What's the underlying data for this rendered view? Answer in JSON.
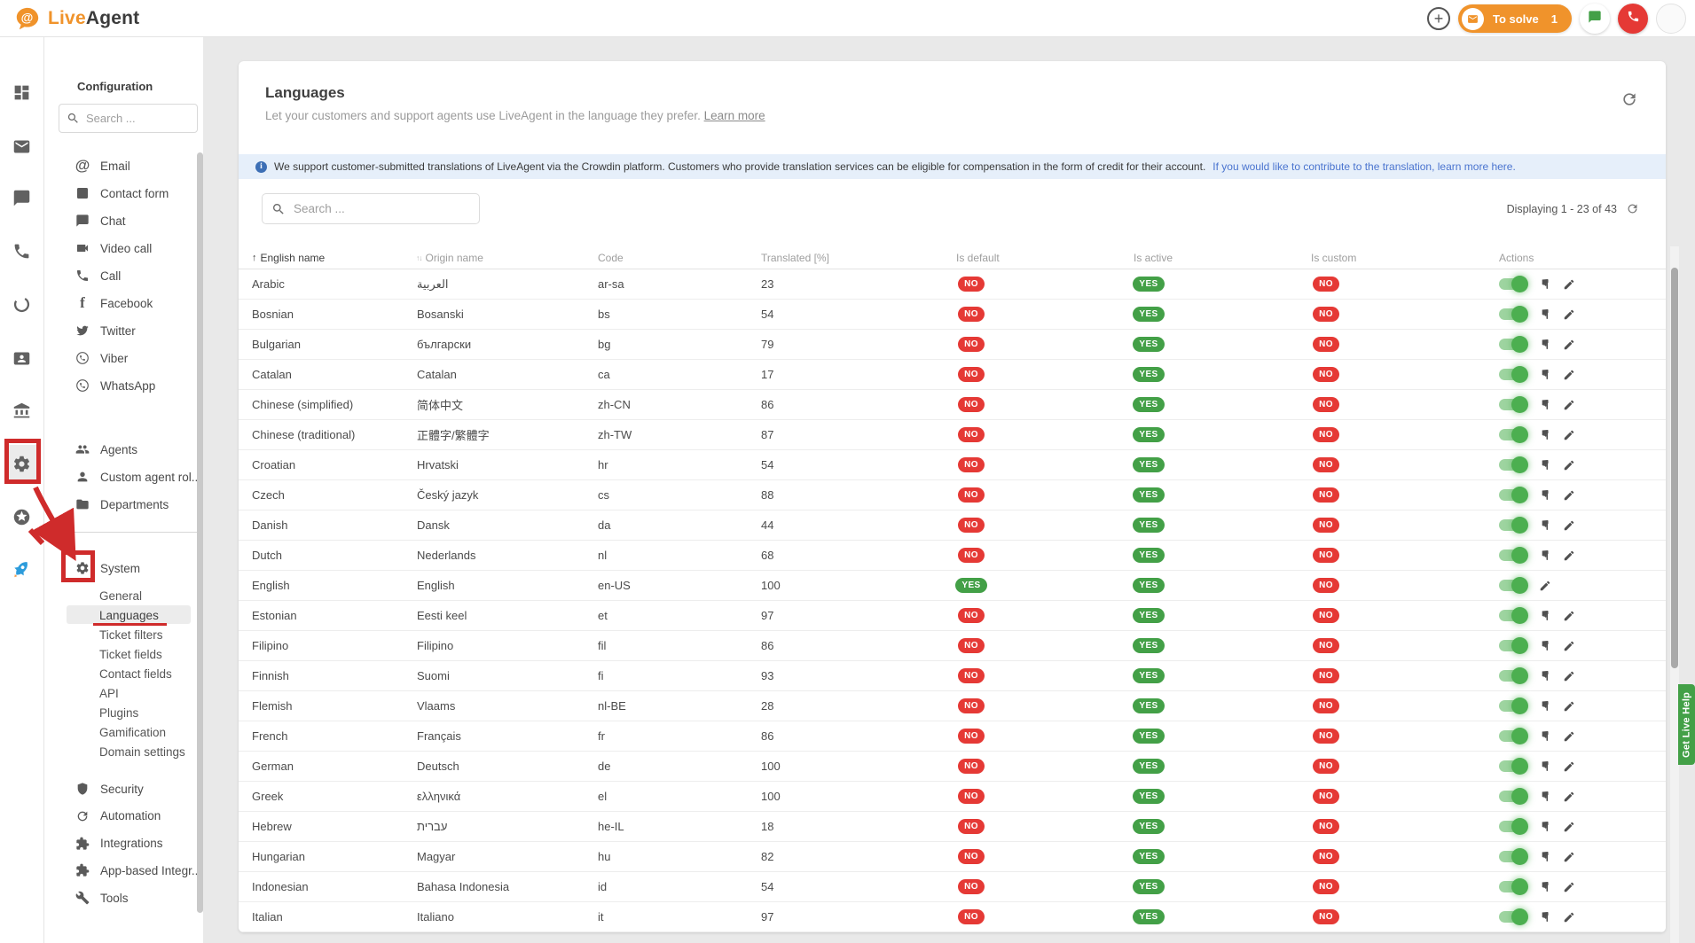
{
  "topbar": {
    "brand_live": "Live",
    "brand_agent": "Agent",
    "to_solve_label": "To solve",
    "to_solve_count": "1"
  },
  "rail_icons": [
    "dashboard",
    "mail",
    "chat",
    "phone",
    "history",
    "contact-card",
    "bank",
    "settings",
    "star",
    "rocket"
  ],
  "sidebar": {
    "title": "Configuration",
    "search_placeholder": "Search ...",
    "channels": [
      {
        "icon": "at",
        "label": "Email"
      },
      {
        "icon": "form",
        "label": "Contact form"
      },
      {
        "icon": "chat",
        "label": "Chat"
      },
      {
        "icon": "videocam",
        "label": "Video call"
      },
      {
        "icon": "phone",
        "label": "Call"
      },
      {
        "icon": "facebook",
        "label": "Facebook"
      },
      {
        "icon": "twitter",
        "label": "Twitter"
      },
      {
        "icon": "viber",
        "label": "Viber"
      },
      {
        "icon": "whatsapp",
        "label": "WhatsApp"
      }
    ],
    "people": [
      {
        "icon": "people",
        "label": "Agents"
      },
      {
        "icon": "person",
        "label": "Custom agent rol..."
      },
      {
        "icon": "folder",
        "label": "Departments"
      }
    ],
    "system": {
      "icon": "gear",
      "label": "System",
      "items": [
        "General",
        "Languages",
        "Ticket filters",
        "Ticket fields",
        "Contact fields",
        "API",
        "Plugins",
        "Gamification",
        "Domain settings"
      ],
      "active": "Languages"
    },
    "bottom": [
      {
        "icon": "shield",
        "label": "Security"
      },
      {
        "icon": "sync",
        "label": "Automation"
      },
      {
        "icon": "puzzle",
        "label": "Integrations"
      },
      {
        "icon": "puzzle",
        "label": "App-based Integr..."
      },
      {
        "icon": "wrench",
        "label": "Tools"
      }
    ]
  },
  "main": {
    "title": "Languages",
    "subtitle": "Let your customers and support agents use LiveAgent in the language they prefer.",
    "learn_more": "Learn more",
    "banner_text": "We support customer-submitted translations of LiveAgent via the Crowdin platform. Customers who provide translation services can be eligible for compensation in the form of credit for their account.",
    "banner_link": "If you would like to contribute to the translation, learn more here.",
    "search_placeholder": "Search ...",
    "displaying": "Displaying 1 - 23 of 43",
    "help_tab": "Get Live Help"
  },
  "table": {
    "columns": [
      "English name",
      "Origin name",
      "Code",
      "Translated [%]",
      "Is default",
      "Is active",
      "Is custom",
      "Actions"
    ],
    "rows": [
      {
        "english": "Arabic",
        "origin": "العربية",
        "code": "ar-sa",
        "translated": "23",
        "is_default": "NO",
        "is_active": "YES",
        "is_custom": "NO",
        "has_hand": true
      },
      {
        "english": "Bosnian",
        "origin": "Bosanski",
        "code": "bs",
        "translated": "54",
        "is_default": "NO",
        "is_active": "YES",
        "is_custom": "NO",
        "has_hand": true
      },
      {
        "english": "Bulgarian",
        "origin": "български",
        "code": "bg",
        "translated": "79",
        "is_default": "NO",
        "is_active": "YES",
        "is_custom": "NO",
        "has_hand": true
      },
      {
        "english": "Catalan",
        "origin": "Catalan",
        "code": "ca",
        "translated": "17",
        "is_default": "NO",
        "is_active": "YES",
        "is_custom": "NO",
        "has_hand": true
      },
      {
        "english": "Chinese (simplified)",
        "origin": "简体中文",
        "code": "zh-CN",
        "translated": "86",
        "is_default": "NO",
        "is_active": "YES",
        "is_custom": "NO",
        "has_hand": true
      },
      {
        "english": "Chinese (traditional)",
        "origin": "正體字/繁體字",
        "code": "zh-TW",
        "translated": "87",
        "is_default": "NO",
        "is_active": "YES",
        "is_custom": "NO",
        "has_hand": true
      },
      {
        "english": "Croatian",
        "origin": "Hrvatski",
        "code": "hr",
        "translated": "54",
        "is_default": "NO",
        "is_active": "YES",
        "is_custom": "NO",
        "has_hand": true
      },
      {
        "english": "Czech",
        "origin": "Český jazyk",
        "code": "cs",
        "translated": "88",
        "is_default": "NO",
        "is_active": "YES",
        "is_custom": "NO",
        "has_hand": true
      },
      {
        "english": "Danish",
        "origin": "Dansk",
        "code": "da",
        "translated": "44",
        "is_default": "NO",
        "is_active": "YES",
        "is_custom": "NO",
        "has_hand": true
      },
      {
        "english": "Dutch",
        "origin": "Nederlands",
        "code": "nl",
        "translated": "68",
        "is_default": "NO",
        "is_active": "YES",
        "is_custom": "NO",
        "has_hand": true
      },
      {
        "english": "English",
        "origin": "English",
        "code": "en-US",
        "translated": "100",
        "is_default": "YES",
        "is_active": "YES",
        "is_custom": "NO",
        "has_hand": false
      },
      {
        "english": "Estonian",
        "origin": "Eesti keel",
        "code": "et",
        "translated": "97",
        "is_default": "NO",
        "is_active": "YES",
        "is_custom": "NO",
        "has_hand": true
      },
      {
        "english": "Filipino",
        "origin": "Filipino",
        "code": "fil",
        "translated": "86",
        "is_default": "NO",
        "is_active": "YES",
        "is_custom": "NO",
        "has_hand": true
      },
      {
        "english": "Finnish",
        "origin": "Suomi",
        "code": "fi",
        "translated": "93",
        "is_default": "NO",
        "is_active": "YES",
        "is_custom": "NO",
        "has_hand": true
      },
      {
        "english": "Flemish",
        "origin": "Vlaams",
        "code": "nl-BE",
        "translated": "28",
        "is_default": "NO",
        "is_active": "YES",
        "is_custom": "NO",
        "has_hand": true
      },
      {
        "english": "French",
        "origin": "Français",
        "code": "fr",
        "translated": "86",
        "is_default": "NO",
        "is_active": "YES",
        "is_custom": "NO",
        "has_hand": true
      },
      {
        "english": "German",
        "origin": "Deutsch",
        "code": "de",
        "translated": "100",
        "is_default": "NO",
        "is_active": "YES",
        "is_custom": "NO",
        "has_hand": true
      },
      {
        "english": "Greek",
        "origin": "ελληνικά",
        "code": "el",
        "translated": "100",
        "is_default": "NO",
        "is_active": "YES",
        "is_custom": "NO",
        "has_hand": true
      },
      {
        "english": "Hebrew",
        "origin": "עברית",
        "code": "he-IL",
        "translated": "18",
        "is_default": "NO",
        "is_active": "YES",
        "is_custom": "NO",
        "has_hand": true
      },
      {
        "english": "Hungarian",
        "origin": "Magyar",
        "code": "hu",
        "translated": "82",
        "is_default": "NO",
        "is_active": "YES",
        "is_custom": "NO",
        "has_hand": true
      },
      {
        "english": "Indonesian",
        "origin": "Bahasa Indonesia",
        "code": "id",
        "translated": "54",
        "is_default": "NO",
        "is_active": "YES",
        "is_custom": "NO",
        "has_hand": true
      },
      {
        "english": "Italian",
        "origin": "Italiano",
        "code": "it",
        "translated": "97",
        "is_default": "NO",
        "is_active": "YES",
        "is_custom": "NO",
        "has_hand": true
      }
    ]
  },
  "colors": {
    "brand_orange": "#f0932b",
    "badge_red": "#e53935",
    "badge_green": "#43a047",
    "toggle_green": "#4caf50",
    "link_blue": "#4a74cf",
    "annotation_red": "#cf2b2b",
    "help_green": "#43a047"
  }
}
